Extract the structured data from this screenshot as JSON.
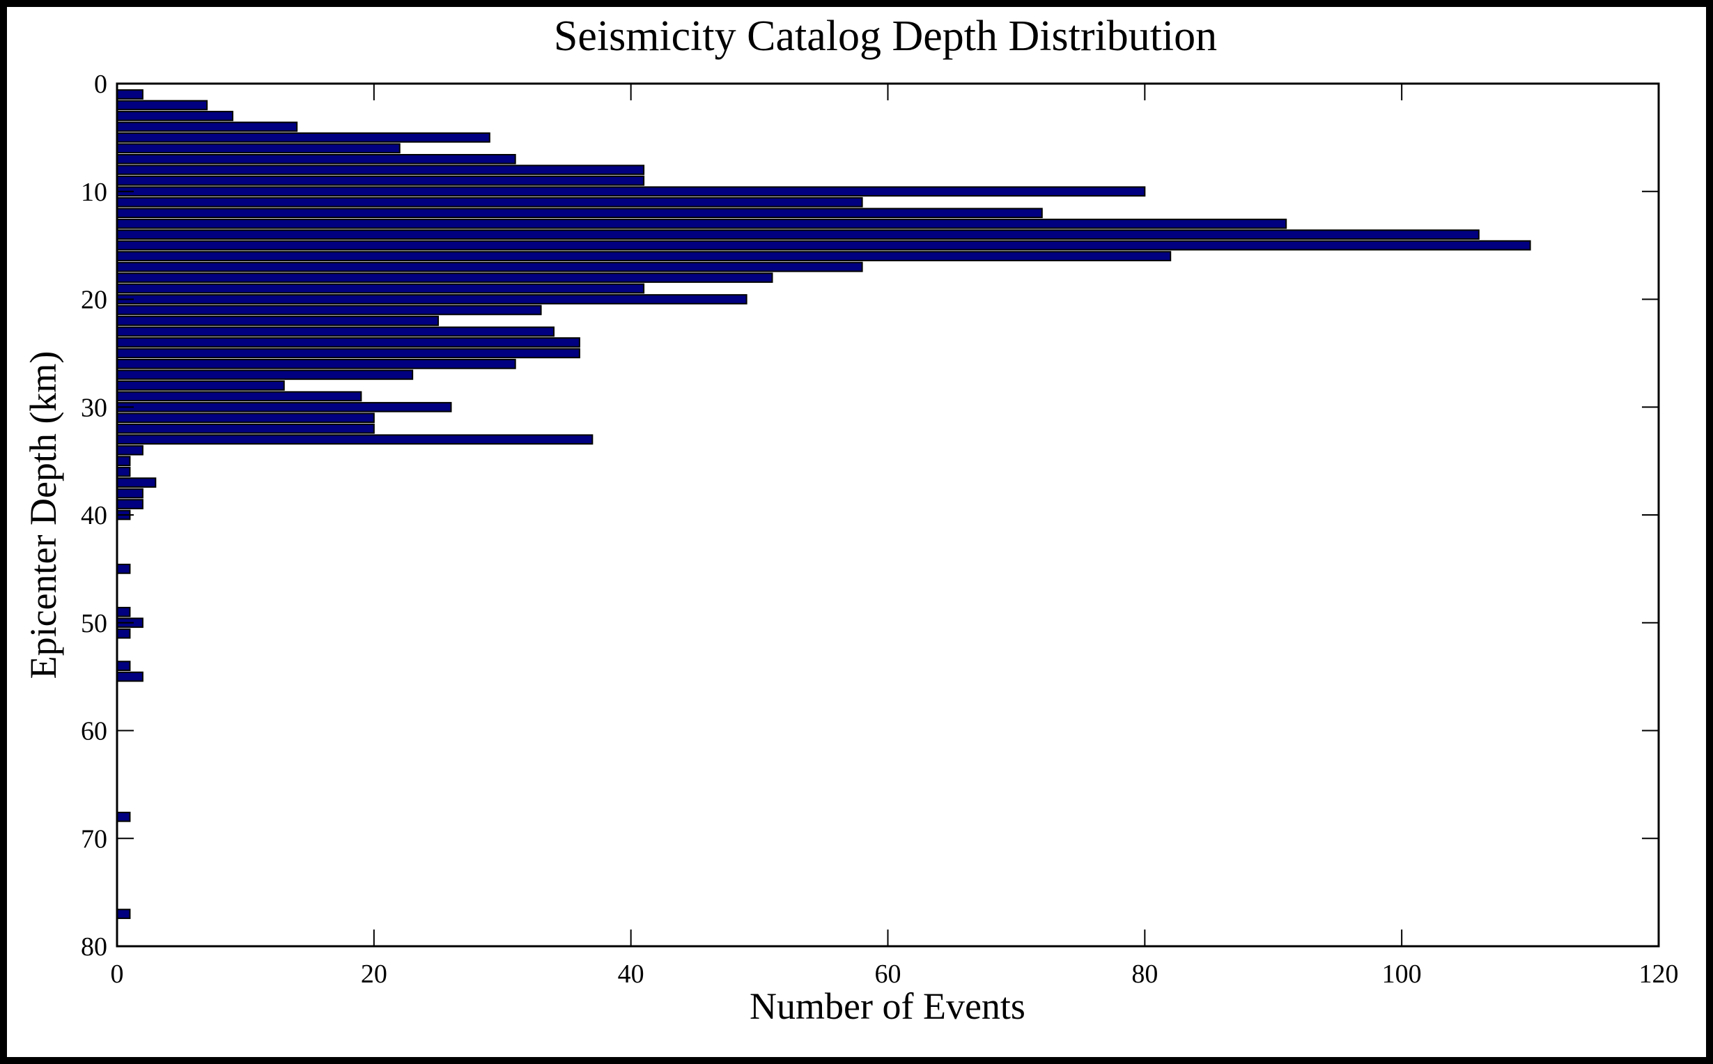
{
  "chart_data": {
    "type": "bar",
    "orientation": "horizontal",
    "title": "Seismicity Catalog Depth Distribution",
    "xlabel": "Number of Events",
    "ylabel": "Epicenter Depth (km)",
    "xlim": [
      0,
      120
    ],
    "ylim": [
      80,
      0
    ],
    "y_reversed": true,
    "xticks": [
      0,
      20,
      40,
      60,
      80,
      100,
      120
    ],
    "yticks": [
      0,
      10,
      20,
      30,
      40,
      50,
      60,
      70,
      80
    ],
    "grid": false,
    "bar_color": "#000080",
    "bar_edge_color": "#000000",
    "bin_width_km": 1,
    "depth_bins_km": [
      1,
      2,
      3,
      4,
      5,
      6,
      7,
      8,
      9,
      10,
      11,
      12,
      13,
      14,
      15,
      16,
      17,
      18,
      19,
      20,
      21,
      22,
      23,
      24,
      25,
      26,
      27,
      28,
      29,
      30,
      31,
      32,
      33,
      34,
      35,
      36,
      37,
      38,
      39,
      40,
      45,
      49,
      50,
      51,
      54,
      55,
      68,
      77
    ],
    "values": [
      2,
      7,
      9,
      14,
      29,
      22,
      31,
      41,
      41,
      80,
      58,
      72,
      91,
      106,
      110,
      82,
      58,
      51,
      41,
      49,
      33,
      25,
      34,
      36,
      36,
      31,
      23,
      13,
      19,
      26,
      20,
      20,
      37,
      2,
      1,
      1,
      3,
      2,
      2,
      1,
      1,
      1,
      2,
      1,
      1,
      2,
      1,
      1
    ]
  }
}
